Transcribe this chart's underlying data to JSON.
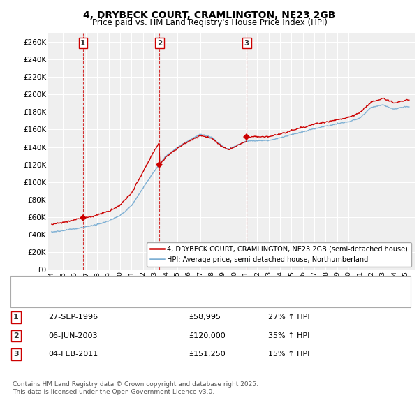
{
  "title": "4, DRYBECK COURT, CRAMLINGTON, NE23 2GB",
  "subtitle": "Price paid vs. HM Land Registry's House Price Index (HPI)",
  "ylim": [
    0,
    270000
  ],
  "yticks": [
    0,
    20000,
    40000,
    60000,
    80000,
    100000,
    120000,
    140000,
    160000,
    180000,
    200000,
    220000,
    240000,
    260000
  ],
  "line_color_property": "#cc0000",
  "line_color_hpi": "#7eb0d4",
  "legend_property": "4, DRYBECK COURT, CRAMLINGTON, NE23 2GB (semi-detached house)",
  "legend_hpi": "HPI: Average price, semi-detached house, Northumberland",
  "sale_years": [
    1996.75,
    2003.45,
    2011.09
  ],
  "sale_prices": [
    58995,
    120000,
    151250
  ],
  "transactions": [
    {
      "num": 1,
      "date": "27-SEP-1996",
      "price": "£58,995",
      "pct": "27% ↑ HPI"
    },
    {
      "num": 2,
      "date": "06-JUN-2003",
      "price": "£120,000",
      "pct": "35% ↑ HPI"
    },
    {
      "num": 3,
      "date": "04-FEB-2011",
      "price": "£151,250",
      "pct": "15% ↑ HPI"
    }
  ],
  "footnote1": "Contains HM Land Registry data © Crown copyright and database right 2025.",
  "footnote2": "This data is licensed under the Open Government Licence v3.0.",
  "background_color": "#ffffff",
  "plot_bg_color": "#efefef",
  "grid_color": "#ffffff",
  "xmin": 1993.7,
  "xmax": 2025.8,
  "xtick_start": 1994,
  "xtick_end": 2025
}
